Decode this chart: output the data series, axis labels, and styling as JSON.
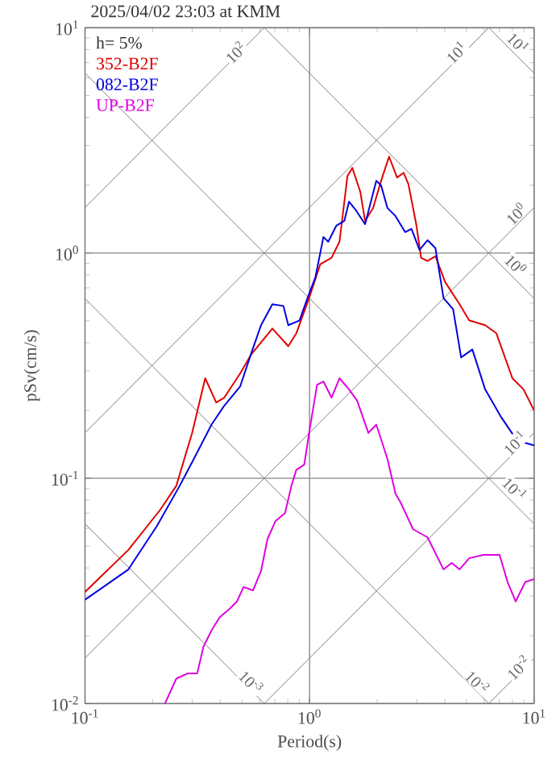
{
  "chart_data": {
    "type": "line",
    "title": "2025/04/02 23:03 at KMM",
    "xlabel": "Period(s)",
    "ylabel": "pSv(cm/s)",
    "log": "xy",
    "grid": true,
    "legend": "top left",
    "marker": "none",
    "line_style": "solid",
    "xlim": [
      0.1,
      10
    ],
    "ylim": [
      0.01,
      10
    ],
    "xticks": [
      {
        "value": 0.1,
        "label": "10$^{-1}$"
      },
      {
        "value": 1,
        "label": "10$^{0}$"
      },
      {
        "value": 10,
        "label": "10$^{1}$"
      }
    ],
    "yticks": [
      {
        "value": 0.01,
        "label": "10$^{-2}$"
      },
      {
        "value": 0.1,
        "label": "10$^{-1}$"
      },
      {
        "value": 1,
        "label": "10$^{0}$"
      },
      {
        "value": 10,
        "label": "10$^{1}$"
      }
    ],
    "annotations": [
      "h= 5%",
      {
        "text": "10$^{2}$",
        "x": 0.468,
        "y": 7.8
      },
      {
        "text": "10$^{1}$",
        "x": 4.5,
        "y": 7.8
      },
      {
        "text": "10$^{1}$",
        "x": 8.5,
        "y": 8.6
      },
      {
        "text": "10$^{0}$",
        "x": 8.3,
        "y": 1.5
      },
      {
        "text": "10$^{0}$",
        "x": 8.3,
        "y": 0.89
      },
      {
        "text": "10$^{-1}$",
        "x": 8.2,
        "y": 0.144
      },
      {
        "text": "10$^{-1}$",
        "x": 8.2,
        "y": 0.09
      },
      {
        "text": "10$^{-2}$",
        "x": 8.5,
        "y": 0.0145
      },
      {
        "text": "10$^{-2}$",
        "x": 5.6,
        "y": 0.0125
      },
      {
        "text": "10$^{-3}$",
        "x": 0.55,
        "y": 0.0125
      }
    ],
    "series": [
      {
        "type": "line",
        "color": "#808080",
        "x": [
          0.1,
          0.6283
        ],
        "values": [
          1.592,
          10
        ]
      },
      {
        "type": "line",
        "color": "#808080",
        "x": [
          0.1,
          6.283
        ],
        "values": [
          0.1592,
          10
        ]
      },
      {
        "type": "line",
        "color": "#808080",
        "x": [
          0.1,
          10
        ],
        "values": [
          0.01592,
          1.592
        ]
      },
      {
        "type": "line",
        "color": "#808080",
        "x": [
          0.6283,
          10
        ],
        "values": [
          0.01,
          0.1592
        ]
      },
      {
        "type": "line",
        "color": "#808080",
        "x": [
          6.283,
          10
        ],
        "values": [
          0.01,
          0.01592
        ]
      },
      {
        "type": "line",
        "color": "#808080",
        "x": [
          6.283,
          10
        ],
        "values": [
          10,
          6.283
        ]
      },
      {
        "type": "line",
        "color": "#808080",
        "x": [
          0.6283,
          10
        ],
        "values": [
          10,
          0.6283
        ]
      },
      {
        "type": "line",
        "color": "#808080",
        "x": [
          0.1,
          10
        ],
        "values": [
          6.283,
          0.06283
        ]
      },
      {
        "type": "line",
        "color": "#808080",
        "x": [
          0.1,
          6.283
        ],
        "values": [
          0.6283,
          0.01
        ]
      },
      {
        "type": "line",
        "color": "#808080",
        "x": [
          0.1,
          0.6283
        ],
        "values": [
          0.06283,
          0.01
        ]
      },
      {
        "name": "352-B2F",
        "color": "#e00000",
        "x": [
          0.1,
          0.156,
          0.216,
          0.255,
          0.3,
          0.343,
          0.384,
          0.417,
          0.491,
          0.551,
          0.683,
          0.804,
          0.873,
          0.995,
          1.116,
          1.253,
          1.359,
          1.475,
          1.55,
          1.683,
          1.767,
          1.918,
          2.083,
          2.259,
          2.454,
          2.622,
          2.754,
          2.985,
          3.138,
          3.352,
          3.637,
          4.014,
          4.656,
          5.138,
          6.053,
          6.792,
          8.003,
          8.976,
          10
        ],
        "values": [
          0.0313,
          0.0481,
          0.0724,
          0.0926,
          0.159,
          0.278,
          0.217,
          0.228,
          0.292,
          0.356,
          0.462,
          0.386,
          0.44,
          0.631,
          0.891,
          0.952,
          1.122,
          2.198,
          2.387,
          1.866,
          1.388,
          1.584,
          2.093,
          2.677,
          2.163,
          2.271,
          2.024,
          1.343,
          0.952,
          0.921,
          0.968,
          0.744,
          0.592,
          0.502,
          0.478,
          0.44,
          0.278,
          0.248,
          0.2
        ]
      },
      {
        "name": "082-B2F",
        "color": "#0000e0",
        "x": [
          0.1,
          0.156,
          0.209,
          0.264,
          0.3,
          0.366,
          0.417,
          0.491,
          0.551,
          0.608,
          0.683,
          0.765,
          0.804,
          0.902,
          0.979,
          1.062,
          1.153,
          1.211,
          1.315,
          1.428,
          1.499,
          1.602,
          1.767,
          1.983,
          2.083,
          2.222,
          2.414,
          2.665,
          2.844,
          3.088,
          3.352,
          3.637,
          3.951,
          4.357,
          4.732,
          5.309,
          6.053,
          7.129,
          8.399,
          10
        ],
        "values": [
          0.0289,
          0.0394,
          0.0614,
          0.0926,
          0.118,
          0.173,
          0.21,
          0.256,
          0.361,
          0.478,
          0.592,
          0.582,
          0.478,
          0.502,
          0.631,
          0.782,
          1.178,
          1.122,
          1.321,
          1.388,
          1.69,
          1.557,
          1.343,
          2.093,
          1.993,
          1.584,
          1.459,
          1.238,
          1.279,
          1.033,
          1.14,
          1.05,
          0.631,
          0.563,
          0.344,
          0.373,
          0.248,
          0.187,
          0.147,
          0.14
        ]
      },
      {
        "name": "UP-B2F",
        "color": "#e000e0",
        "x": [
          0.227,
          0.255,
          0.286,
          0.316,
          0.337,
          0.366,
          0.397,
          0.438,
          0.475,
          0.508,
          0.56,
          0.608,
          0.65,
          0.705,
          0.778,
          0.83,
          0.873,
          0.947,
          0.995,
          1.08,
          1.153,
          1.253,
          1.359,
          1.499,
          1.629,
          1.828,
          1.983,
          2.222,
          2.414,
          2.535,
          2.891,
          3.352,
          3.951,
          4.295,
          4.656,
          5.138,
          5.957,
          7.015,
          7.621,
          8.279,
          9.128,
          10
        ],
        "values": [
          0.01,
          0.0129,
          0.0136,
          0.0136,
          0.0179,
          0.0211,
          0.0241,
          0.0262,
          0.0284,
          0.0329,
          0.0318,
          0.0388,
          0.0538,
          0.0646,
          0.07,
          0.0926,
          0.109,
          0.115,
          0.159,
          0.26,
          0.269,
          0.228,
          0.278,
          0.248,
          0.221,
          0.159,
          0.173,
          0.122,
          0.0853,
          0.0786,
          0.0594,
          0.0547,
          0.0394,
          0.0421,
          0.0394,
          0.0442,
          0.0457,
          0.0457,
          0.0346,
          0.0284,
          0.0346,
          0.0357
        ]
      }
    ]
  }
}
